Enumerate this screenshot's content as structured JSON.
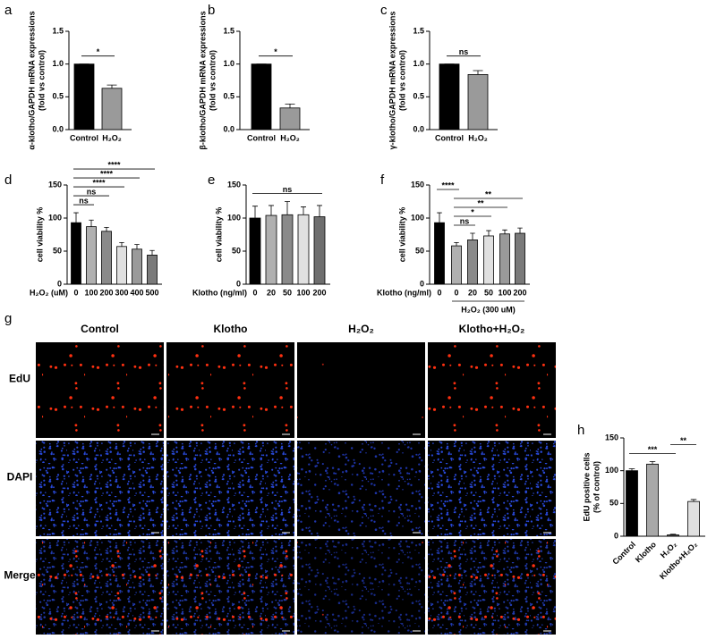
{
  "chart_data": [
    {
      "type": "bar",
      "panel": "a",
      "ylabel": [
        "α-klotho/GAPDH mRNA expressions",
        "(fold vs control)"
      ],
      "categories": [
        "Control",
        "H₂O₂"
      ],
      "values": [
        1.0,
        0.63
      ],
      "errors": [
        0,
        0.05
      ],
      "colors": [
        "#000000",
        "#9a9a9a"
      ],
      "ylim": [
        0,
        1.5
      ],
      "yticks": [
        {
          "value": 0,
          "label": "0.0"
        },
        0.5,
        {
          "value": 1,
          "label": "1.0"
        },
        1.5
      ],
      "annotations": [
        {
          "text": "*",
          "span": [
            0,
            1
          ]
        }
      ]
    },
    {
      "type": "bar",
      "panel": "b",
      "ylabel": [
        "β-klotho/GAPDH mRNA expressions",
        "(fold vs control)"
      ],
      "categories": [
        "Control",
        "H₂O₂"
      ],
      "values": [
        1.0,
        0.33
      ],
      "errors": [
        0,
        0.06
      ],
      "colors": [
        "#000000",
        "#9a9a9a"
      ],
      "ylim": [
        0,
        1.5
      ],
      "yticks": [
        {
          "value": 0,
          "label": "0.0"
        },
        0.5,
        {
          "value": 1,
          "label": "1.0"
        },
        1.5
      ],
      "annotations": [
        {
          "text": "*",
          "span": [
            0,
            1
          ]
        }
      ]
    },
    {
      "type": "bar",
      "panel": "c",
      "ylabel": [
        "γ-klotho/GAPDH mRNA expressions",
        "(fold vs control)"
      ],
      "categories": [
        "Control",
        "H₂O₂"
      ],
      "values": [
        1.0,
        0.84
      ],
      "errors": [
        0,
        0.06
      ],
      "colors": [
        "#000000",
        "#9a9a9a"
      ],
      "ylim": [
        0,
        1.5
      ],
      "yticks": [
        {
          "value": 0,
          "label": "0.0"
        },
        0.5,
        {
          "value": 1,
          "label": "1.0"
        },
        1.5
      ],
      "annotations": [
        {
          "text": "ns",
          "span": [
            0,
            1
          ]
        }
      ]
    },
    {
      "type": "bar",
      "panel": "d",
      "ylabel": [
        "cell viability %"
      ],
      "xlabel": "H₂O₂ (uM)",
      "categories": [
        "0",
        "100",
        "200",
        "300",
        "400",
        "500"
      ],
      "values": [
        93,
        87,
        80,
        57,
        53,
        44
      ],
      "errors": [
        15,
        10,
        6,
        6,
        7,
        7
      ],
      "colors": [
        "#000000",
        "#b0b0b0",
        "#8a8a8a",
        "#e0e0e0",
        "#9a9a9a",
        "#7a7a7a"
      ],
      "ylim": [
        0,
        150
      ],
      "yticks": [
        0,
        50,
        100,
        150
      ],
      "annotations": [
        {
          "text": "ns",
          "span": [
            0,
            1
          ]
        },
        {
          "text": "ns",
          "span": [
            0,
            2
          ]
        },
        {
          "text": "****",
          "span": [
            0,
            3
          ]
        },
        {
          "text": "****",
          "span": [
            0,
            4
          ]
        },
        {
          "text": "****",
          "span": [
            0,
            5
          ]
        }
      ]
    },
    {
      "type": "bar",
      "panel": "e",
      "ylabel": [
        "cell viability %"
      ],
      "xlabel": "Klotho (ng/ml)",
      "categories": [
        "0",
        "20",
        "50",
        "100",
        "200"
      ],
      "values": [
        100,
        104,
        105,
        105,
        102
      ],
      "errors": [
        18,
        15,
        20,
        12,
        17
      ],
      "colors": [
        "#000000",
        "#b0b0b0",
        "#8a8a8a",
        "#e0e0e0",
        "#6e6e6e"
      ],
      "ylim": [
        0,
        150
      ],
      "yticks": [
        0,
        50,
        100,
        150
      ],
      "annotations": [
        {
          "text": "ns",
          "span": [
            0,
            4
          ]
        }
      ]
    },
    {
      "type": "bar",
      "panel": "f",
      "ylabel": [
        "cell viability %"
      ],
      "xlabel": "Klotho (ng/ml)",
      "categories": [
        "0",
        "0",
        "20",
        "50",
        "100",
        "200"
      ],
      "values": [
        93,
        58,
        67,
        73,
        76,
        77
      ],
      "errors": [
        15,
        5,
        10,
        8,
        6,
        8
      ],
      "colors": [
        "#000000",
        "#b0b0b0",
        "#8a8a8a",
        "#e0e0e0",
        "#9a9a9a",
        "#7a7a7a"
      ],
      "ylim": [
        0,
        150
      ],
      "yticks": [
        0,
        50,
        100,
        150
      ],
      "annotations": [
        {
          "text": "ns",
          "span": [
            1,
            2
          ]
        },
        {
          "text": "*",
          "span": [
            1,
            3
          ]
        },
        {
          "text": "**",
          "span": [
            1,
            4
          ]
        },
        {
          "text": "**",
          "span": [
            1,
            5
          ]
        },
        {
          "text": "****",
          "span": [
            0,
            1
          ]
        }
      ],
      "group_label": {
        "text": "H₂O₂ (300 uM)",
        "span": [
          1,
          5
        ]
      }
    },
    {
      "type": "bar",
      "panel": "h",
      "ylabel": [
        "EdU positive cells",
        "(% of control)"
      ],
      "categories": [
        "Control",
        "Klotho",
        "H₂O₂",
        "Klotho+H₂O₂"
      ],
      "values": [
        100,
        110,
        2,
        53
      ],
      "errors": [
        3,
        4,
        1,
        3
      ],
      "colors": [
        "#000000",
        "#a8a8a8",
        "#555555",
        "#e0e0e0"
      ],
      "ylim": [
        0,
        150
      ],
      "yticks": [
        0,
        50,
        100,
        150
      ],
      "annotations": [
        {
          "text": "***",
          "span": [
            0,
            2
          ]
        },
        {
          "text": "**",
          "span": [
            2,
            3
          ]
        }
      ]
    }
  ],
  "image_grid": {
    "panel": "g",
    "columns": [
      "Control",
      "Klotho",
      "H₂O₂",
      "Klotho+H₂O₂"
    ],
    "rows": [
      "EdU",
      "DAPI",
      "Merge"
    ]
  }
}
